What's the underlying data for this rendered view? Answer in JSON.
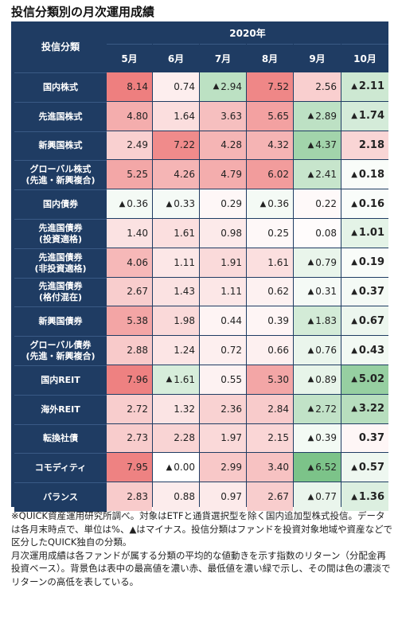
{
  "title": "投信分類別の月次運用成績",
  "table": {
    "corner_label": "投信分類",
    "year_label": "2020年",
    "months": [
      "5月",
      "6月",
      "7月",
      "8月",
      "9月",
      "10月"
    ],
    "minus_marker": "▲",
    "rows": [
      {
        "label": [
          "国内株式"
        ],
        "values": [
          8.14,
          0.74,
          -2.94,
          7.52,
          2.56,
          -2.11
        ]
      },
      {
        "label": [
          "先進国株式"
        ],
        "values": [
          4.8,
          1.64,
          3.63,
          5.65,
          -2.89,
          -1.74
        ]
      },
      {
        "label": [
          "新興国株式"
        ],
        "values": [
          2.49,
          7.22,
          4.28,
          4.32,
          -4.37,
          2.18
        ]
      },
      {
        "label": [
          "グローバル株式",
          "(先進・新興複合)"
        ],
        "values": [
          5.25,
          4.26,
          4.79,
          6.02,
          -2.41,
          -0.18
        ]
      },
      {
        "label": [
          "国内債券"
        ],
        "values": [
          -0.36,
          -0.33,
          0.29,
          -0.36,
          0.22,
          -0.16
        ]
      },
      {
        "label": [
          "先進国債券",
          "(投資適格)"
        ],
        "values": [
          1.4,
          1.61,
          0.98,
          0.25,
          0.08,
          -1.01
        ]
      },
      {
        "label": [
          "先進国債券",
          "(非投資適格)"
        ],
        "values": [
          4.06,
          1.11,
          1.91,
          1.61,
          -0.79,
          -0.19
        ]
      },
      {
        "label": [
          "先進国債券",
          "(格付混在)"
        ],
        "values": [
          2.67,
          1.43,
          1.11,
          0.62,
          -0.31,
          -0.37
        ]
      },
      {
        "label": [
          "新興国債券"
        ],
        "values": [
          5.38,
          1.98,
          0.44,
          0.39,
          -1.83,
          -0.67
        ]
      },
      {
        "label": [
          "グローバル債券",
          "(先進・新興複合)"
        ],
        "values": [
          2.88,
          1.24,
          0.72,
          0.66,
          -0.76,
          -0.43
        ]
      },
      {
        "label": [
          "国内REIT"
        ],
        "values": [
          7.96,
          -1.61,
          0.55,
          5.3,
          -0.89,
          -5.02
        ]
      },
      {
        "label": [
          "海外REIT"
        ],
        "values": [
          2.72,
          1.32,
          2.36,
          2.84,
          -2.72,
          -3.22
        ]
      },
      {
        "label": [
          "転換社債"
        ],
        "values": [
          2.73,
          2.28,
          1.97,
          2.15,
          -0.39,
          0.37
        ]
      },
      {
        "label": [
          "コモディティ"
        ],
        "values": [
          7.95,
          0.0,
          2.99,
          3.4,
          -6.52,
          -0.57
        ],
        "minus_zero": [
          1
        ]
      },
      {
        "label": [
          "バランス"
        ],
        "values": [
          2.83,
          0.88,
          0.97,
          2.67,
          -0.77,
          -1.36
        ]
      }
    ],
    "colors": {
      "header_bg": "#1f3c63",
      "header_text": "#ffffff",
      "high": "#ee7f7f",
      "mid": "#ffffff",
      "low": "#7cc389"
    }
  },
  "chart_data": {
    "type": "heatmap",
    "title": "投信分類別の月次運用成績",
    "xlabel": "2020年",
    "ylabel": "投信分類",
    "x": [
      "5月",
      "6月",
      "7月",
      "8月",
      "9月",
      "10月"
    ],
    "y": [
      "国内株式",
      "先進国株式",
      "新興国株式",
      "グローバル株式(先進・新興複合)",
      "国内債券",
      "先進国債券(投資適格)",
      "先進国債券(非投資適格)",
      "先進国債券(格付混在)",
      "新興国債券",
      "グローバル債券(先進・新興複合)",
      "国内REIT",
      "海外REIT",
      "転換社債",
      "コモディティ",
      "バランス"
    ],
    "values": [
      [
        8.14,
        0.74,
        -2.94,
        7.52,
        2.56,
        -2.11
      ],
      [
        4.8,
        1.64,
        3.63,
        5.65,
        -2.89,
        -1.74
      ],
      [
        2.49,
        7.22,
        4.28,
        4.32,
        -4.37,
        2.18
      ],
      [
        5.25,
        4.26,
        4.79,
        6.02,
        -2.41,
        -0.18
      ],
      [
        -0.36,
        -0.33,
        0.29,
        -0.36,
        0.22,
        -0.16
      ],
      [
        1.4,
        1.61,
        0.98,
        0.25,
        0.08,
        -1.01
      ],
      [
        4.06,
        1.11,
        1.91,
        1.61,
        -0.79,
        -0.19
      ],
      [
        2.67,
        1.43,
        1.11,
        0.62,
        -0.31,
        -0.37
      ],
      [
        5.38,
        1.98,
        0.44,
        0.39,
        -1.83,
        -0.67
      ],
      [
        2.88,
        1.24,
        0.72,
        0.66,
        -0.76,
        -0.43
      ],
      [
        7.96,
        -1.61,
        0.55,
        5.3,
        -0.89,
        -5.02
      ],
      [
        2.72,
        1.32,
        2.36,
        2.84,
        -2.72,
        -3.22
      ],
      [
        2.73,
        2.28,
        1.97,
        2.15,
        -0.39,
        0.37
      ],
      [
        7.95,
        -0.0,
        2.99,
        3.4,
        -6.52,
        -0.57
      ],
      [
        2.83,
        0.88,
        0.97,
        2.67,
        -0.77,
        -1.36
      ]
    ]
  },
  "footnote": [
    "※QUICK資産運用研究所調べ。対象はETFと通貨選択型を除く国内追加型株式投信。データは各月末時点で、単位は%、▲はマイナス。投信分類はファンドを投資対象地域や資産などで区分したQUICK独自の分類。",
    "月次運用成績は各ファンドが属する分類の平均的な値動きを示す指数のリターン（分配金再投資ベース）。背景色は表中の最高値を濃い赤、最低値を濃い緑で示し、その間は色の濃淡でリターンの高低を表している。"
  ]
}
